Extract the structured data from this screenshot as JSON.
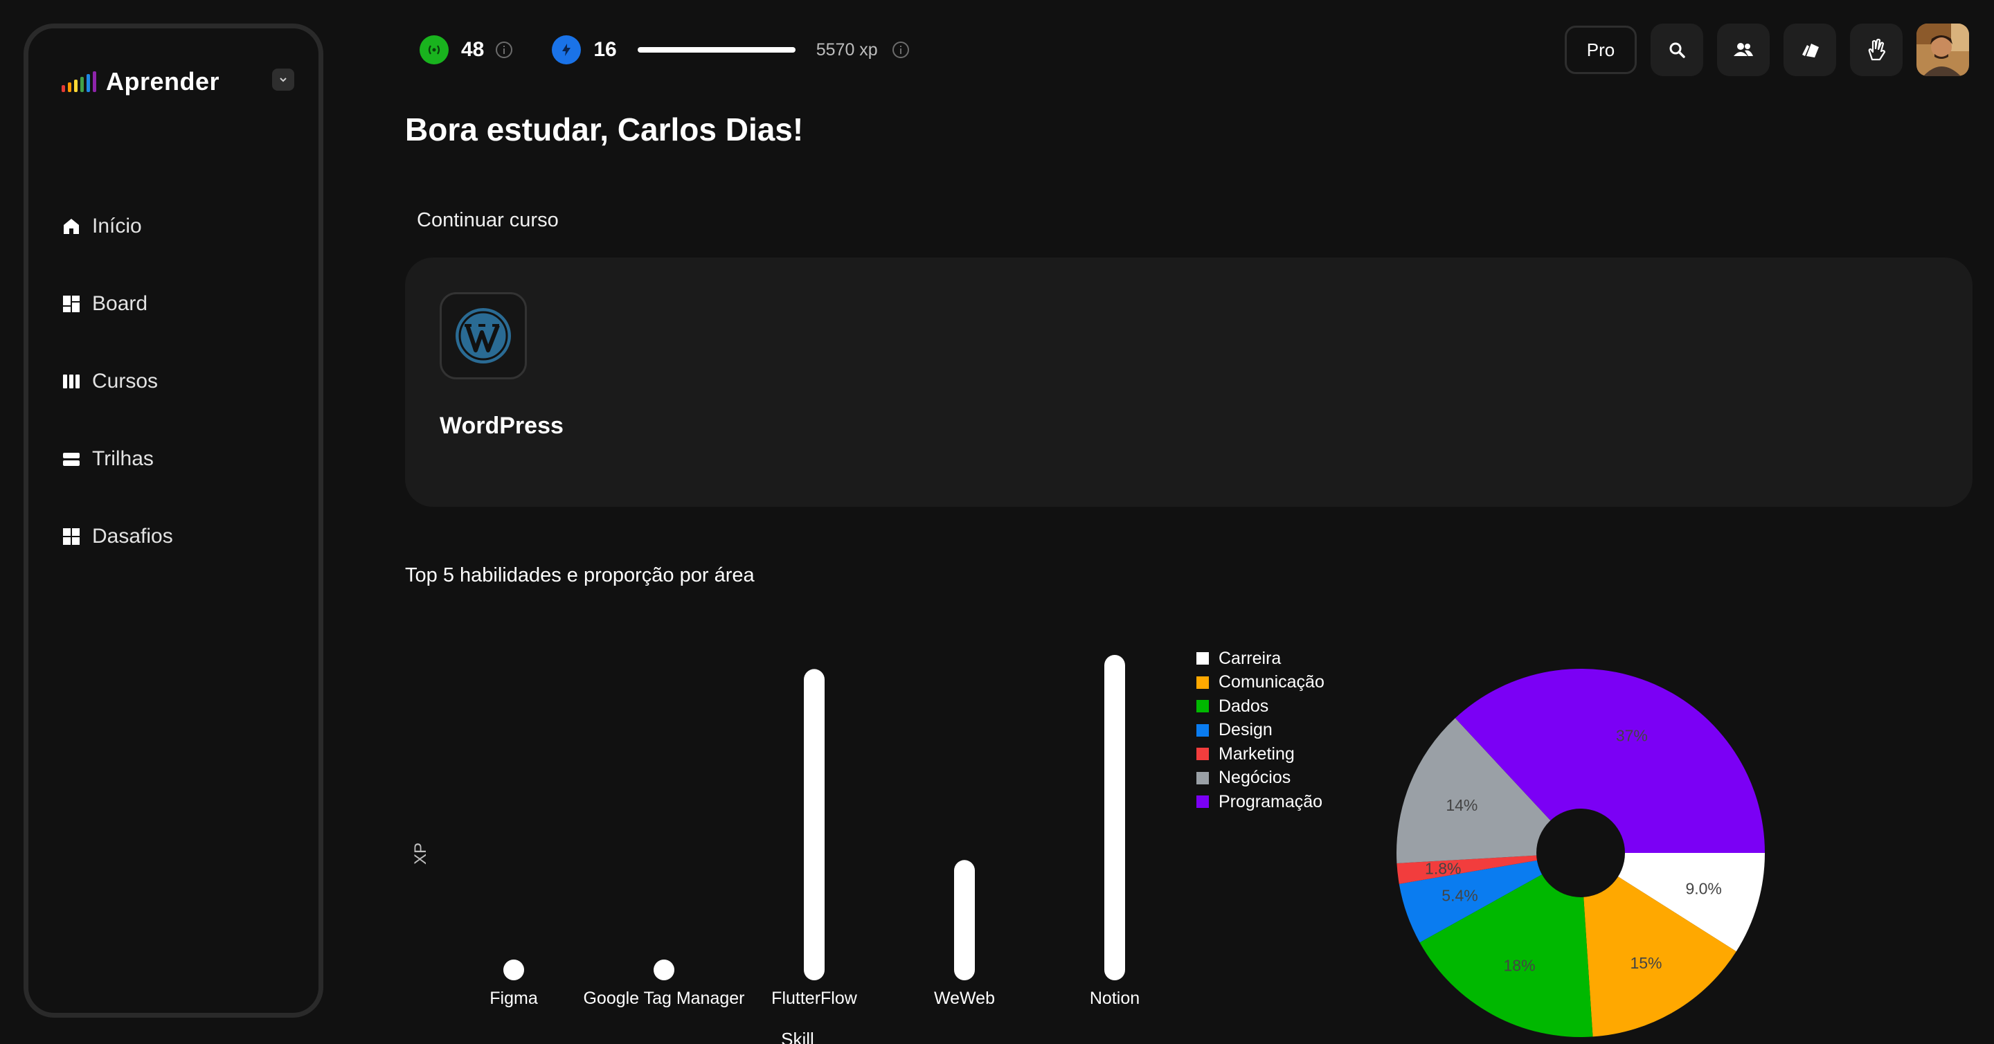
{
  "sidebar": {
    "brand": "Aprender",
    "brand_colors": [
      "#e53935",
      "#ff9800",
      "#fdd835",
      "#43a047",
      "#1e88e5",
      "#8e24aa"
    ],
    "items": [
      {
        "label": "Início",
        "icon": "home-icon"
      },
      {
        "label": "Board",
        "icon": "dashboard-icon"
      },
      {
        "label": "Cursos",
        "icon": "columns-icon"
      },
      {
        "label": "Trilhas",
        "icon": "stack-icon"
      },
      {
        "label": "Dasafios",
        "icon": "grid-icon"
      }
    ]
  },
  "header": {
    "signal_count": "48",
    "energy_count": "16",
    "xp_label": "5570 xp",
    "xp_progress": 1.0,
    "pro_label": "Pro",
    "colors": {
      "signal": "#19b31e",
      "energy": "#1a73e8"
    }
  },
  "main": {
    "greeting": "Bora estudar, Carlos Dias!",
    "continue_label": "Continuar curso",
    "course": {
      "name": "WordPress",
      "icon": "wordpress-icon",
      "color": "#2a6b94"
    },
    "chart_title": "Top 5 habilidades e proporção por área"
  },
  "chart_data": [
    {
      "type": "bar",
      "categories": [
        "Figma",
        "Google Tag Manager",
        "FlutterFlow",
        "WeWeb",
        "Notion"
      ],
      "values": [
        0,
        0,
        440,
        170,
        460
      ],
      "xlabel": "Skill",
      "ylabel": "XP",
      "bar_color": "#ffffff"
    },
    {
      "type": "pie",
      "labels": [
        "Carreira",
        "Comunicação",
        "Dados",
        "Design",
        "Marketing",
        "Negócios",
        "Programação"
      ],
      "values": [
        9.0,
        15,
        18,
        5.4,
        1.8,
        14,
        37
      ],
      "value_labels": [
        "9.0%",
        "15%",
        "18%",
        "5.4%",
        "1.8%",
        "14%",
        "37%"
      ],
      "colors": [
        "#ffffff",
        "#ffa800",
        "#00b800",
        "#0a7cf0",
        "#f23d3d",
        "#9aa0a6",
        "#7b00f5"
      ],
      "legend": "top-left",
      "donut": true
    }
  ]
}
